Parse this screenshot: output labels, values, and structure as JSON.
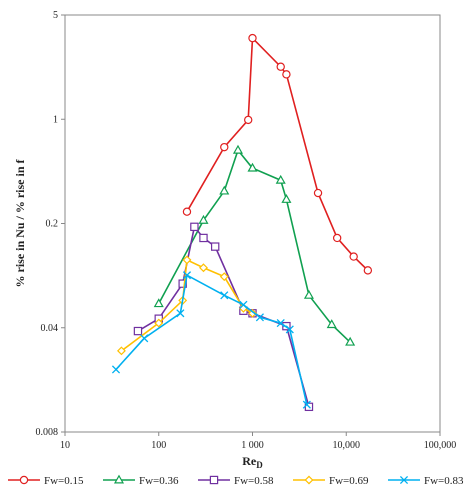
{
  "chart_data": {
    "type": "line",
    "xscale": "log",
    "yscale": "log",
    "xlim": [
      10,
      100000
    ],
    "ylim": [
      0.008,
      5
    ],
    "xlabel": "Re",
    "xlabel_sub": "D",
    "ylabel": "% rise in Nu / % rise in f",
    "x_ticks": [
      10,
      100,
      1000,
      10000,
      100000
    ],
    "x_tick_labels": [
      "10",
      "100",
      "1 000",
      "10,000",
      "100,000"
    ],
    "y_ticks": [
      0.008,
      0.04,
      0.2,
      1,
      5
    ],
    "y_tick_labels": [
      "0.008",
      "0.04",
      "0.2",
      "1",
      "5"
    ],
    "grid": false,
    "legend_position": "bottom",
    "series": [
      {
        "name": "Fw=0.15",
        "color": "#e02020",
        "marker": "circle",
        "points": [
          [
            200,
            0.24
          ],
          [
            500,
            0.65
          ],
          [
            900,
            0.99
          ],
          [
            1000,
            3.5
          ],
          [
            2000,
            2.25
          ],
          [
            2300,
            2.0
          ],
          [
            5000,
            0.32
          ],
          [
            8000,
            0.16
          ],
          [
            12000,
            0.12
          ],
          [
            17000,
            0.097
          ]
        ]
      },
      {
        "name": "Fw=0.36",
        "color": "#10a050",
        "marker": "triangle",
        "points": [
          [
            100,
            0.058
          ],
          [
            300,
            0.21
          ],
          [
            500,
            0.33
          ],
          [
            700,
            0.62
          ],
          [
            1000,
            0.47
          ],
          [
            2000,
            0.39
          ],
          [
            2300,
            0.29
          ],
          [
            4000,
            0.066
          ],
          [
            7000,
            0.042
          ],
          [
            11000,
            0.032
          ]
        ]
      },
      {
        "name": "Fw=0.58",
        "color": "#7030a0",
        "marker": "square",
        "points": [
          [
            60,
            0.038
          ],
          [
            100,
            0.046
          ],
          [
            180,
            0.079
          ],
          [
            240,
            0.19
          ],
          [
            300,
            0.16
          ],
          [
            400,
            0.14
          ],
          [
            800,
            0.052
          ],
          [
            1000,
            0.05
          ],
          [
            2300,
            0.041
          ],
          [
            4000,
            0.0118
          ]
        ]
      },
      {
        "name": "Fw=0.69",
        "color": "#ffc000",
        "marker": "diamond",
        "points": [
          [
            40,
            0.028
          ],
          [
            100,
            0.043
          ],
          [
            180,
            0.061
          ],
          [
            200,
            0.114
          ],
          [
            300,
            0.101
          ],
          [
            500,
            0.088
          ],
          [
            800,
            0.054
          ],
          [
            1000,
            0.05
          ]
        ]
      },
      {
        "name": "Fw=0.83",
        "color": "#00b0f0",
        "marker": "x",
        "points": [
          [
            35,
            0.021
          ],
          [
            70,
            0.034
          ],
          [
            170,
            0.05
          ],
          [
            200,
            0.09
          ],
          [
            500,
            0.066
          ],
          [
            800,
            0.057
          ],
          [
            1200,
            0.047
          ],
          [
            2000,
            0.043
          ],
          [
            2500,
            0.039
          ],
          [
            3800,
            0.0122
          ]
        ]
      }
    ]
  }
}
